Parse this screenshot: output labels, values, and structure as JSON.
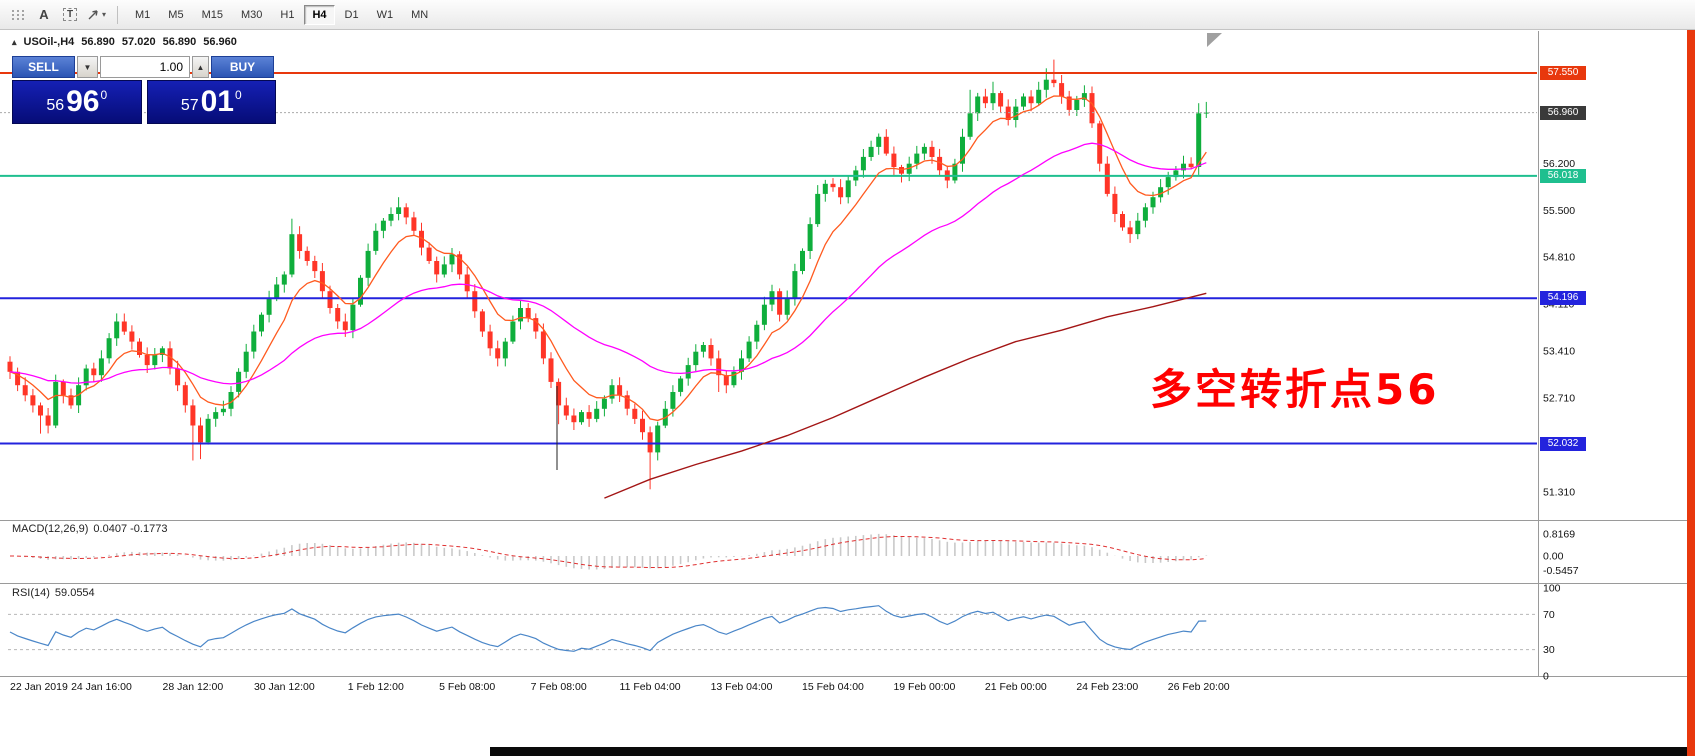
{
  "toolbar": {
    "tool_a": "A",
    "tool_t": "T",
    "timeframes": [
      "M1",
      "M5",
      "M15",
      "M30",
      "H1",
      "H4",
      "D1",
      "W1",
      "MN"
    ],
    "active_timeframe": "H4"
  },
  "symbol_bar": {
    "title": "USOil-,H4",
    "open": "56.890",
    "high": "57.020",
    "low": "56.890",
    "close": "56.960"
  },
  "trade_panel": {
    "sell_label": "SELL",
    "buy_label": "BUY",
    "volume": "1.00",
    "sell_price": {
      "whole": "56",
      "pips": "96",
      "sup": "0"
    },
    "buy_price": {
      "whole": "57",
      "pips": "01",
      "sup": "0"
    }
  },
  "annotation": {
    "text": "多空转折点56",
    "color": "#ff0000"
  },
  "price_axis": {
    "tags": [
      {
        "value": "57.550",
        "price": 57.55,
        "bg": "#e8380d"
      },
      {
        "value": "56.960",
        "price": 56.96,
        "bg": "#3a3a3a"
      },
      {
        "value": "56.018",
        "price": 56.018,
        "bg": "#1fbf8f"
      },
      {
        "value": "54.196",
        "price": 54.196,
        "bg": "#2323dd"
      },
      {
        "value": "52.032",
        "price": 52.032,
        "bg": "#2323dd"
      }
    ],
    "labels": [
      {
        "value": "56.200",
        "price": 56.2
      },
      {
        "value": "55.500",
        "price": 55.5
      },
      {
        "value": "54.810",
        "price": 54.81
      },
      {
        "value": "54.110",
        "price": 54.11
      },
      {
        "value": "53.410",
        "price": 53.41
      },
      {
        "value": "52.710",
        "price": 52.71
      },
      {
        "value": "51.310",
        "price": 51.31
      }
    ]
  },
  "hlines": [
    {
      "price": 57.55,
      "color": "#e8380d",
      "width": 2
    },
    {
      "price": 56.96,
      "color": "#aaaaaa",
      "width": 1,
      "dash": "2,2"
    },
    {
      "price": 56.018,
      "color": "#1fbf8f",
      "width": 2
    },
    {
      "price": 54.196,
      "color": "#2323dd",
      "width": 2
    },
    {
      "price": 52.032,
      "color": "#2323dd",
      "width": 2
    }
  ],
  "indicators": {
    "macd": {
      "label": "MACD(12,26,9)",
      "values": "0.0407 -0.1773",
      "axis": [
        "0.8169",
        "0.00",
        "-0.5457"
      ]
    },
    "rsi": {
      "label": "RSI(14)",
      "value": "59.0554",
      "axis": [
        "100",
        "70",
        "30",
        "0"
      ],
      "levels": [
        70,
        30
      ]
    }
  },
  "colors": {
    "candle_up": "#0fae3c",
    "candle_down": "#ff3527",
    "ma_fast": "#ff5a1f",
    "ma_mid": "#ff00ff",
    "ma_slow": "#a31515",
    "macd_hist": "#c9c9c9",
    "macd_signal": "#e03131",
    "rsi_line": "#4a86c8",
    "annotation_red": "#ff0000"
  },
  "chart_data": {
    "type": "candlestick",
    "symbol": "USOil-",
    "timeframe": "H4",
    "open_first": 53.25,
    "closes": [
      53.1,
      52.9,
      52.75,
      52.6,
      52.45,
      52.3,
      52.95,
      52.75,
      52.6,
      52.9,
      53.15,
      53.05,
      53.3,
      53.6,
      53.85,
      53.7,
      53.55,
      53.35,
      53.2,
      53.35,
      53.45,
      53.15,
      52.9,
      52.6,
      52.3,
      52.05,
      52.4,
      52.5,
      52.55,
      52.8,
      53.1,
      53.4,
      53.7,
      53.95,
      54.2,
      54.4,
      54.55,
      55.15,
      54.9,
      54.75,
      54.6,
      54.3,
      54.05,
      53.85,
      53.72,
      54.1,
      54.5,
      54.9,
      55.2,
      55.35,
      55.45,
      55.55,
      55.4,
      55.2,
      54.95,
      54.75,
      54.55,
      54.7,
      54.85,
      54.55,
      54.3,
      54.0,
      53.7,
      53.45,
      53.3,
      53.55,
      53.85,
      54.05,
      53.9,
      53.7,
      53.3,
      52.95,
      52.6,
      52.45,
      52.35,
      52.5,
      52.4,
      52.55,
      52.7,
      52.9,
      52.75,
      52.55,
      52.4,
      52.2,
      51.9,
      52.3,
      52.55,
      52.8,
      53.0,
      53.2,
      53.4,
      53.5,
      53.3,
      53.05,
      52.9,
      53.1,
      53.3,
      53.55,
      53.8,
      54.1,
      54.3,
      53.95,
      54.2,
      54.6,
      54.9,
      55.3,
      55.75,
      55.9,
      55.85,
      55.7,
      55.95,
      56.1,
      56.3,
      56.45,
      56.6,
      56.35,
      56.15,
      56.05,
      56.2,
      56.35,
      56.45,
      56.3,
      56.1,
      55.95,
      56.2,
      56.6,
      56.95,
      57.2,
      57.1,
      57.25,
      57.05,
      56.85,
      57.05,
      57.2,
      57.1,
      57.3,
      57.45,
      57.4,
      57.2,
      57.0,
      57.15,
      57.25,
      56.8,
      56.2,
      55.75,
      55.45,
      55.25,
      55.15,
      55.35,
      55.55,
      55.7,
      55.85,
      56.0,
      56.1,
      56.2,
      56.15,
      56.95,
      56.96
    ],
    "spikes": {
      "4": {
        "low": 52.18
      },
      "14": {
        "high": 53.97
      },
      "24": {
        "low": 51.78
      },
      "25": {
        "low": 51.8
      },
      "37": {
        "high": 55.38
      },
      "44": {
        "low": 53.62
      },
      "51": {
        "high": 55.7
      },
      "64": {
        "low": 53.18
      },
      "72": {
        "low": 52.32
      },
      "84": {
        "low": 51.35
      },
      "93": {
        "low": 52.8
      },
      "106": {
        "high": 55.88
      },
      "117": {
        "low": 55.92
      },
      "126": {
        "high": 57.3
      },
      "129": {
        "high": 57.42
      },
      "136": {
        "high": 57.62
      },
      "137": {
        "high": 57.75
      },
      "147": {
        "low": 55.02
      },
      "156": {
        "high": 57.1
      },
      "157": {
        "high": 57.12,
        "low": 56.88
      }
    },
    "ma": {
      "fast_period": 8,
      "mid_period": 34,
      "slow_anchors": [
        [
          78,
          51.22
        ],
        [
          84,
          51.5
        ],
        [
          90,
          51.72
        ],
        [
          96,
          51.92
        ],
        [
          102,
          52.15
        ],
        [
          108,
          52.42
        ],
        [
          114,
          52.72
        ],
        [
          120,
          53.02
        ],
        [
          126,
          53.3
        ],
        [
          132,
          53.55
        ],
        [
          138,
          53.72
        ],
        [
          144,
          53.92
        ],
        [
          150,
          54.07
        ],
        [
          157,
          54.27
        ]
      ]
    },
    "time_labels": [
      {
        "text": "22 Jan 2019",
        "i": 0
      },
      {
        "text": "24 Jan 16:00",
        "i": 12
      },
      {
        "text": "28 Jan 12:00",
        "i": 24
      },
      {
        "text": "30 Jan 12:00",
        "i": 36
      },
      {
        "text": "1 Feb 12:00",
        "i": 48
      },
      {
        "text": "5 Feb 08:00",
        "i": 60
      },
      {
        "text": "7 Feb 08:00",
        "i": 72
      },
      {
        "text": "11 Feb 04:00",
        "i": 84
      },
      {
        "text": "13 Feb 04:00",
        "i": 96
      },
      {
        "text": "15 Feb 04:00",
        "i": 108
      },
      {
        "text": "19 Feb 00:00",
        "i": 120
      },
      {
        "text": "21 Feb 00:00",
        "i": 132
      },
      {
        "text": "24 Feb 23:00",
        "i": 144
      },
      {
        "text": "26 Feb 20:00",
        "i": 156
      }
    ]
  }
}
